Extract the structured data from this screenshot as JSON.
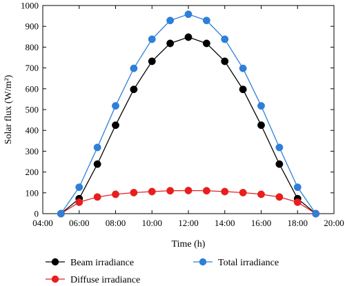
{
  "chart_data": {
    "type": "line",
    "xlabel": "Time (h)",
    "ylabel": "Solar flux (W/m²)",
    "xlim": [
      "04:00",
      "20:00"
    ],
    "ylim": [
      0,
      1000
    ],
    "xticks": [
      "04:00",
      "06:00",
      "08:00",
      "10:00",
      "12:00",
      "14:00",
      "16:00",
      "18:00",
      "20:00"
    ],
    "yticks": [
      0,
      100,
      200,
      300,
      400,
      500,
      600,
      700,
      800,
      900,
      1000
    ],
    "x": [
      "05:00",
      "06:00",
      "07:00",
      "08:00",
      "09:00",
      "10:00",
      "11:00",
      "12:00",
      "13:00",
      "14:00",
      "15:00",
      "16:00",
      "17:00",
      "18:00",
      "19:00"
    ],
    "grid": false,
    "legend_position": "bottom",
    "series": [
      {
        "name": "Beam irradiance",
        "color": "#000000",
        "line_color": "#000000",
        "values": [
          0,
          72,
          238,
          425,
          597,
          732,
          818,
          848,
          818,
          732,
          597,
          425,
          238,
          72,
          0
        ]
      },
      {
        "name": "Total irradiance",
        "color": "#2e7fd8",
        "line_color": "#2e7fd8",
        "values": [
          0,
          127,
          318,
          518,
          698,
          838,
          928,
          958,
          928,
          838,
          698,
          518,
          318,
          127,
          0
        ]
      },
      {
        "name": "Diffuse irradiance",
        "color": "#e81e1e",
        "line_color": "#e81e1e",
        "values": [
          0,
          55,
          80,
          93,
          101,
          106,
          110,
          111,
          110,
          106,
          101,
          93,
          80,
          55,
          0
        ]
      }
    ]
  }
}
